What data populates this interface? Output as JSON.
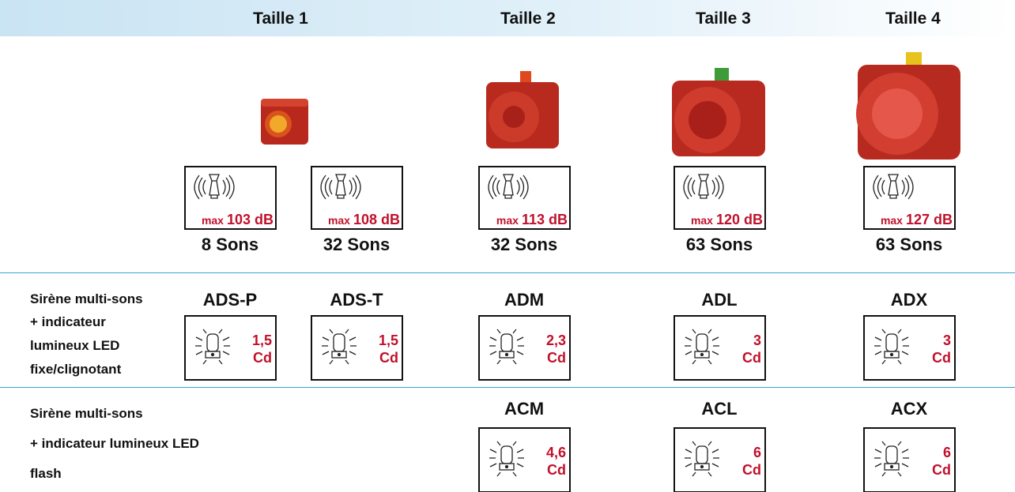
{
  "header": {
    "sizes": [
      "Taille 1",
      "Taille 2",
      "Taille 3",
      "Taille 4"
    ]
  },
  "sound": [
    {
      "max": "max",
      "db": "103 dB",
      "sons": "8 Sons"
    },
    {
      "max": "max",
      "db": "108 dB",
      "sons": "32 Sons"
    },
    {
      "max": "max",
      "db": "113 dB",
      "sons": "32 Sons"
    },
    {
      "max": "max",
      "db": "120 dB",
      "sons": "63 Sons"
    },
    {
      "max": "max",
      "db": "127 dB",
      "sons": "63 Sons"
    }
  ],
  "rows": [
    {
      "label": [
        "Sirène multi-sons",
        "+  indicateur",
        "lumineux LED",
        "fixe/clignotant"
      ],
      "products": [
        {
          "name": "ADS-P",
          "cd": "1,5",
          "unit": "Cd"
        },
        {
          "name": "ADS-T",
          "cd": "1,5",
          "unit": "Cd"
        },
        {
          "name": "ADM",
          "cd": "2,3",
          "unit": "Cd"
        },
        {
          "name": "ADL",
          "cd": "3",
          "unit": "Cd"
        },
        {
          "name": "ADX",
          "cd": "3",
          "unit": "Cd"
        }
      ]
    },
    {
      "label": [
        "Sirène multi-sons",
        "+  indicateur lumineux LED",
        "flash"
      ],
      "products": [
        {
          "name": "ACM",
          "cd": "4,6",
          "unit": "Cd"
        },
        {
          "name": "ACL",
          "cd": "6",
          "unit": "Cd"
        },
        {
          "name": "ACX",
          "cd": "6",
          "unit": "Cd"
        }
      ]
    }
  ]
}
